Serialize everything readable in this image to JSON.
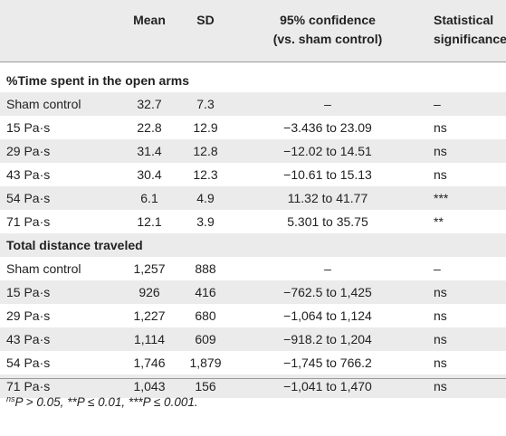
{
  "header": {
    "mean": "Mean",
    "sd": "SD",
    "ci_line1": "95% confidence",
    "ci_line2": "(vs. sham control)",
    "sig_line1": "Statistical",
    "sig_line2": "significance"
  },
  "sections": [
    {
      "title": "%Time spent in the open arms",
      "rows": [
        {
          "label": "Sham control",
          "mean": "32.7",
          "sd": "7.3",
          "ci": "–",
          "sig": "–"
        },
        {
          "label": "15 Pa·s",
          "mean": "22.8",
          "sd": "12.9",
          "ci": "−3.436 to 23.09",
          "sig": "ns"
        },
        {
          "label": "29 Pa·s",
          "mean": "31.4",
          "sd": "12.8",
          "ci": "−12.02 to 14.51",
          "sig": "ns"
        },
        {
          "label": "43 Pa·s",
          "mean": "30.4",
          "sd": "12.3",
          "ci": "−10.61 to 15.13",
          "sig": "ns"
        },
        {
          "label": "54 Pa·s",
          "mean": "6.1",
          "sd": "4.9",
          "ci": "11.32 to 41.77",
          "sig": "***"
        },
        {
          "label": "71 Pa·s",
          "mean": "12.1",
          "sd": "3.9",
          "ci": "5.301 to 35.75",
          "sig": "**"
        }
      ]
    },
    {
      "title": "Total distance traveled",
      "rows": [
        {
          "label": "Sham control",
          "mean": "1,257",
          "sd": "888",
          "ci": "–",
          "sig": "–"
        },
        {
          "label": "15 Pa·s",
          "mean": "926",
          "sd": "416",
          "ci": "−762.5 to 1,425",
          "sig": "ns"
        },
        {
          "label": "29 Pa·s",
          "mean": "1,227",
          "sd": "680",
          "ci": "−1,064 to 1,124",
          "sig": "ns"
        },
        {
          "label": "43 Pa·s",
          "mean": "1,114",
          "sd": "609",
          "ci": "−918.2 to 1,204",
          "sig": "ns"
        },
        {
          "label": "54 Pa·s",
          "mean": "1,746",
          "sd": "1,879",
          "ci": "−1,745 to 766.2",
          "sig": "ns"
        },
        {
          "label": "71 Pa·s",
          "mean": "1,043",
          "sd": "156",
          "ci": "−1,041 to 1,470",
          "sig": "ns"
        }
      ]
    }
  ],
  "footnote": {
    "sup1": "ns",
    "text1": "P > 0.05, ",
    "text2": "**P ≤ 0.01, ***P ≤ 0.001."
  }
}
